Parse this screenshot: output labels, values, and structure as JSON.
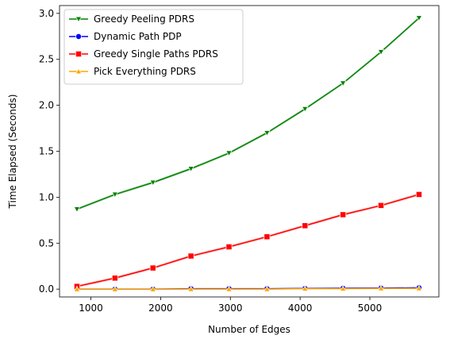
{
  "chart_data": {
    "type": "line",
    "title": "",
    "xlabel": "Number of Edges",
    "ylabel": "Time Elapsed (Seconds)",
    "xlim": [
      550,
      5990
    ],
    "ylim": [
      -0.085,
      3.085
    ],
    "xticks": [
      1000,
      2000,
      3000,
      4000,
      5000
    ],
    "xtick_labels": [
      "1000",
      "2000",
      "3000",
      "4000",
      "5000"
    ],
    "yticks": [
      0.0,
      0.5,
      1.0,
      1.5,
      2.0,
      2.5,
      3.0
    ],
    "ytick_labels": [
      "0.0",
      "0.5",
      "1.0",
      "1.5",
      "2.0",
      "2.5",
      "3.0"
    ],
    "grid": false,
    "legend": "top-left",
    "x": [
      800,
      1345,
      1890,
      2435,
      2980,
      3525,
      4070,
      4615,
      5160,
      5705
    ],
    "series": [
      {
        "name": "Greedy Peeling PDRS",
        "color": "#008000",
        "marker": "triangle-down",
        "values": [
          0.87,
          1.03,
          1.16,
          1.31,
          1.48,
          1.7,
          1.96,
          2.24,
          2.58,
          2.95
        ],
        "band": 0.015
      },
      {
        "name": "Dynamic Path PDP",
        "color": "#0000ff",
        "marker": "circle",
        "values": [
          0.0,
          0.0,
          0.0,
          0.005,
          0.005,
          0.005,
          0.008,
          0.01,
          0.012,
          0.015
        ],
        "band": 0.0
      },
      {
        "name": "Greedy Single Paths PDRS",
        "color": "#ff0000",
        "marker": "square",
        "values": [
          0.03,
          0.12,
          0.23,
          0.36,
          0.46,
          0.57,
          0.69,
          0.81,
          0.91,
          1.03
        ],
        "band": 0.015
      },
      {
        "name": "Pick Everything PDRS",
        "color": "#ffa500",
        "marker": "triangle-up",
        "values": [
          0.0,
          0.0,
          0.0,
          0.0,
          0.0,
          0.0,
          0.005,
          0.005,
          0.008,
          0.008
        ],
        "band": 0.0
      }
    ]
  }
}
